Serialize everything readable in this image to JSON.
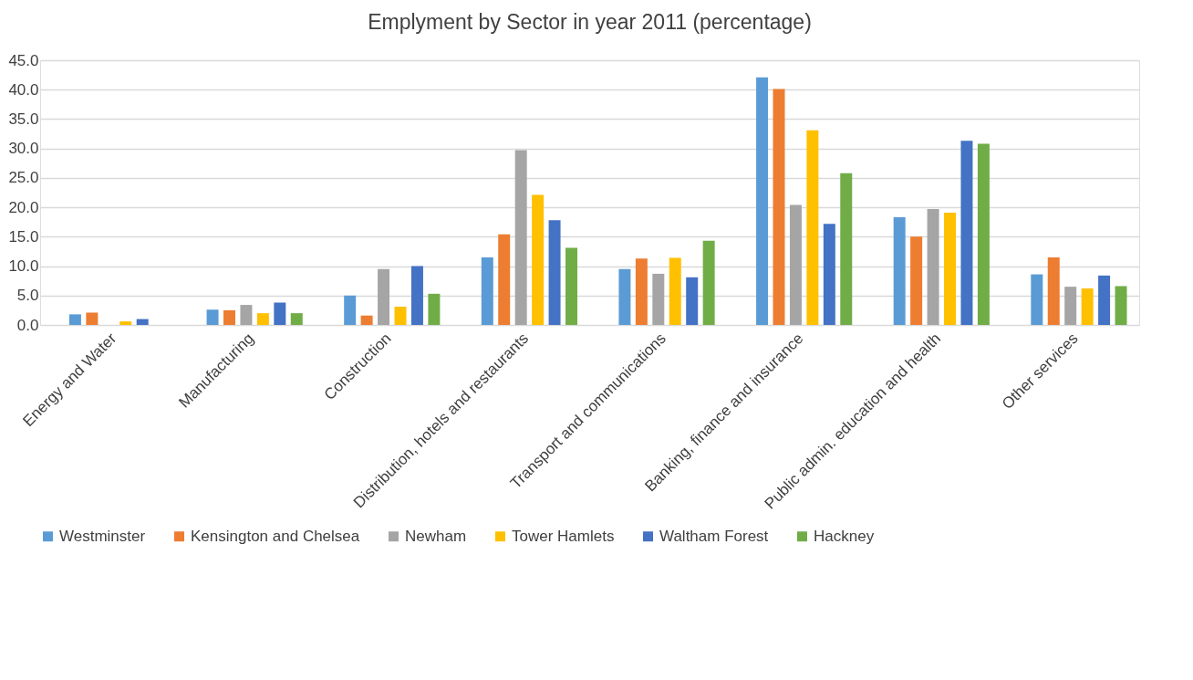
{
  "chart_data": {
    "type": "bar",
    "title": "Emplyment  by Sector in year 2011 (percentage)",
    "categories": [
      "Energy and Water",
      "Manufacturing",
      "Construction",
      "Distribution, hotels and restaurants",
      "Transport and communications",
      "Banking, finance and insurance",
      "Public admin. education and health",
      "Other services"
    ],
    "series": [
      {
        "name": "Westminster",
        "color": "#5b9bd5",
        "values": [
          1.8,
          2.6,
          5.0,
          11.5,
          9.5,
          42.1,
          18.3,
          8.6
        ]
      },
      {
        "name": "Kensington and Chelsea",
        "color": "#ed7d31",
        "values": [
          2.1,
          2.5,
          1.6,
          15.4,
          11.3,
          40.1,
          15.0,
          11.5
        ]
      },
      {
        "name": "Newham",
        "color": "#a5a5a5",
        "values": [
          0,
          3.4,
          9.5,
          29.7,
          8.7,
          20.4,
          19.7,
          6.5
        ]
      },
      {
        "name": "Tower Hamlets",
        "color": "#ffc000",
        "values": [
          0.6,
          2.0,
          3.1,
          22.1,
          11.4,
          33.1,
          19.1,
          6.2
        ]
      },
      {
        "name": "Waltham Forest",
        "color": "#4472c4",
        "values": [
          1.0,
          3.8,
          10.0,
          17.8,
          8.1,
          17.2,
          31.3,
          8.4
        ]
      },
      {
        "name": "Hackney",
        "color": "#70ad47",
        "values": [
          0,
          2.0,
          5.3,
          13.1,
          14.3,
          25.8,
          30.8,
          6.6
        ]
      }
    ],
    "ylim": [
      0,
      45
    ],
    "yticks": [
      {
        "value": 0,
        "label": "0.0"
      },
      {
        "value": 5,
        "label": "5.0"
      },
      {
        "value": 10,
        "label": "10.0"
      },
      {
        "value": 15,
        "label": "15.0"
      },
      {
        "value": 20,
        "label": "20.0"
      },
      {
        "value": 25,
        "label": "25.0"
      },
      {
        "value": 30,
        "label": "30.0"
      },
      {
        "value": 35,
        "label": "35.0"
      },
      {
        "value": 40,
        "label": "40.0"
      },
      {
        "value": 45,
        "label": "45.0"
      }
    ],
    "grid": "y",
    "legend": "bottom"
  }
}
